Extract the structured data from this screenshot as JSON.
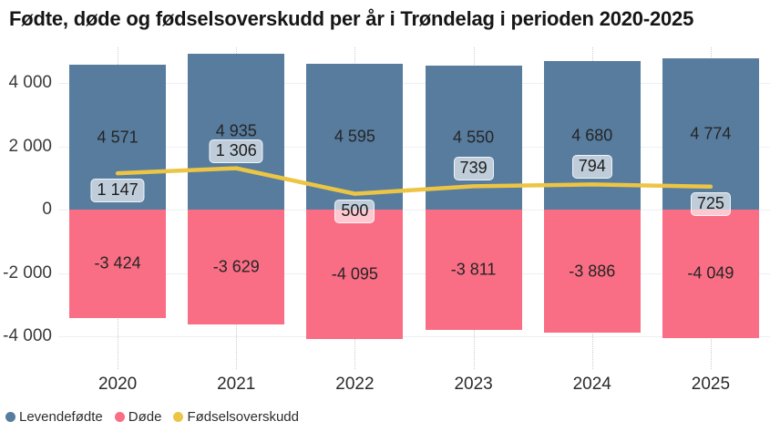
{
  "title": "Fødte, døde og fødselsoverskudd per år i Trøndelag i perioden 2020-2025",
  "colors": {
    "births_bar": "#577c9e",
    "deaths_bar": "#f96e84",
    "surplus_line": "#edc545",
    "gridline_horizontal": "#edf0f4",
    "gridline_vertical": "#cbcbcb",
    "line_label_background": "rgba(255,255,255,0.62)",
    "text_dark": "#252525"
  },
  "legend": {
    "items": [
      {
        "label": "Levendefødte",
        "color": "#577c9e"
      },
      {
        "label": "Døde",
        "color": "#f96e84"
      },
      {
        "label": "Fødselsoverskudd",
        "color": "#edc545"
      }
    ]
  },
  "chart_data": {
    "type": "bar",
    "subtype": "diverging-bars-with-line-overlay",
    "title": "Fødte, døde og fødselsoverskudd per år i Trøndelag i perioden 2020-2025",
    "categories": [
      "2020",
      "2021",
      "2022",
      "2023",
      "2024",
      "2025"
    ],
    "series": [
      {
        "name": "Levendefødte",
        "type": "bar",
        "color": "#577c9e",
        "values": [
          4571,
          4935,
          4595,
          4550,
          4680,
          4774
        ],
        "labels": [
          "4 571",
          "4 935",
          "4 595",
          "4 550",
          "4 680",
          "4 774"
        ]
      },
      {
        "name": "Døde",
        "type": "bar",
        "color": "#f96e84",
        "values": [
          -3424,
          -3629,
          -4095,
          -3811,
          -3886,
          -4049
        ],
        "labels": [
          "-3 424",
          "-3 629",
          "-4 095",
          "-3 811",
          "-3 886",
          "-4 049"
        ]
      },
      {
        "name": "Fødselsoverskudd",
        "type": "line",
        "color": "#edc545",
        "values": [
          1147,
          1306,
          500,
          739,
          794,
          725
        ],
        "labels": [
          "1 147",
          "1 306",
          "500",
          "739",
          "794",
          "725"
        ],
        "label_placement": [
          "below",
          "above",
          "below",
          "above",
          "above",
          "below"
        ]
      }
    ],
    "yticks": [
      {
        "value": 4000,
        "label": "4 000"
      },
      {
        "value": 2000,
        "label": "2 000"
      },
      {
        "value": 0,
        "label": "0"
      },
      {
        "value": -2000,
        "label": "-2 000"
      },
      {
        "value": -4000,
        "label": "-4 000"
      }
    ],
    "ylim": [
      -5030,
      5120
    ],
    "grid": true,
    "legend_position": "bottom-left",
    "number_format": "space thousands separator"
  }
}
